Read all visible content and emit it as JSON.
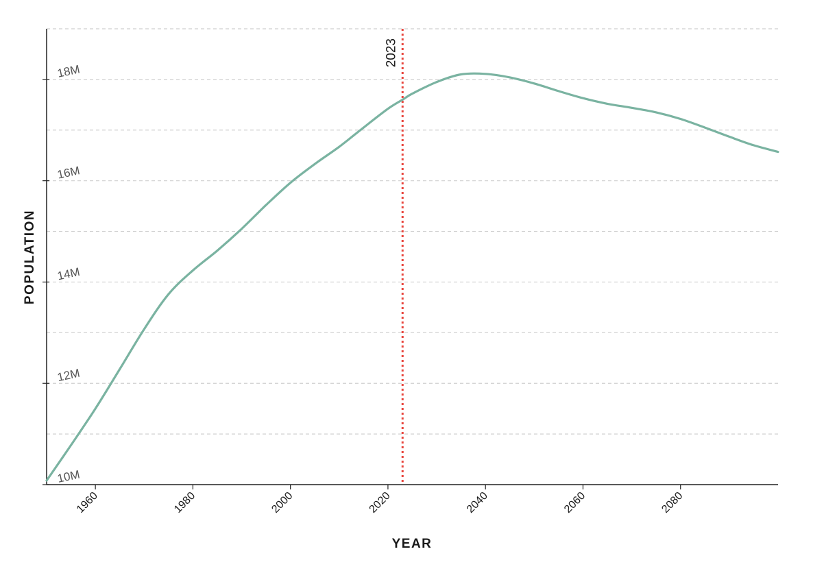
{
  "chart_data": {
    "type": "line",
    "title": "",
    "xlabel": "YEAR",
    "ylabel": "POPULATION",
    "xlim": [
      1950,
      2100
    ],
    "ylim": [
      10000000,
      19000000
    ],
    "x_ticks": [
      1960,
      1980,
      2000,
      2020,
      2040,
      2060,
      2080
    ],
    "x_tick_labels": [
      "1960",
      "1980",
      "2000",
      "2020",
      "2040",
      "2060",
      "2080"
    ],
    "y_ticks": [
      10000000,
      12000000,
      14000000,
      16000000,
      18000000
    ],
    "y_tick_labels": [
      "10M",
      "12M",
      "14M",
      "16M",
      "18M"
    ],
    "y_gridlines": [
      11000000,
      12000000,
      13000000,
      14000000,
      15000000,
      16000000,
      17000000,
      18000000,
      19000000
    ],
    "grid": true,
    "legend": "none",
    "reference_line": {
      "x": 2023,
      "label": "2023",
      "color": "#e8473f"
    },
    "series": [
      {
        "color": "#7ab3a1",
        "x": [
          1950,
          1955,
          1960,
          1965,
          1970,
          1975,
          1980,
          1985,
          1990,
          1995,
          2000,
          2005,
          2010,
          2015,
          2020,
          2023,
          2025,
          2030,
          2035,
          2040,
          2045,
          2050,
          2055,
          2060,
          2065,
          2070,
          2075,
          2080,
          2085,
          2090,
          2095,
          2100
        ],
        "y": [
          10080000,
          10780000,
          11500000,
          12280000,
          13070000,
          13760000,
          14230000,
          14620000,
          15050000,
          15520000,
          15960000,
          16330000,
          16670000,
          17050000,
          17420000,
          17600000,
          17720000,
          17950000,
          18100000,
          18110000,
          18040000,
          17920000,
          17770000,
          17630000,
          17520000,
          17440000,
          17350000,
          17220000,
          17050000,
          16870000,
          16700000,
          16570000
        ]
      }
    ]
  }
}
